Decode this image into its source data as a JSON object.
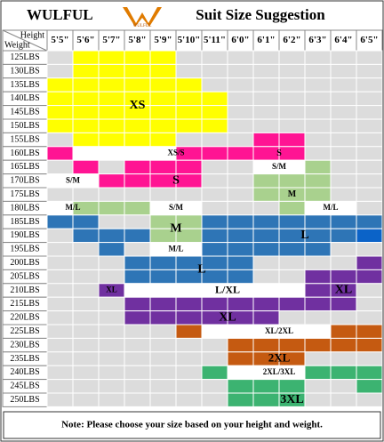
{
  "header": {
    "brand": "WULFUL",
    "logo_text": "WULFUL",
    "title": "Suit Size Suggestion"
  },
  "table": {
    "corner_top": "Height",
    "corner_bottom": "Weight",
    "heights": [
      "5'5\"",
      "5'6\"",
      "5'7\"",
      "5'8\"",
      "5'9\"",
      "5'10\"",
      "5'11\"",
      "6'0\"",
      "6'1\"",
      "6'2\"",
      "6'3\"",
      "6'4\"",
      "6'5\""
    ],
    "weights": [
      "125LBS",
      "130LBS",
      "135LBS",
      "140LBS",
      "145LBS",
      "150LBS",
      "155LBS",
      "160LBS",
      "165LBS",
      "170LBS",
      "175LBS",
      "180LBS",
      "185LBS",
      "190LBS",
      "195LBS",
      "200LBS",
      "205LBS",
      "210LBS",
      "215LBS",
      "220LBS",
      "225LBS",
      "230LBS",
      "235LBS",
      "240LBS",
      "245LBS",
      "250LBS"
    ],
    "size_labels": [
      "XS",
      "S",
      "XS/S",
      "S/M",
      "S",
      "S/M",
      "M",
      "M/L",
      "S/M",
      "M/L",
      "M",
      "L",
      "M/L",
      "L",
      "XL",
      "L/XL",
      "XL",
      "XL",
      "XL/2XL",
      "2XL",
      "2XL/3XL",
      "3XL"
    ]
  },
  "note": "Note: Please choose your size based on your height and weight."
}
